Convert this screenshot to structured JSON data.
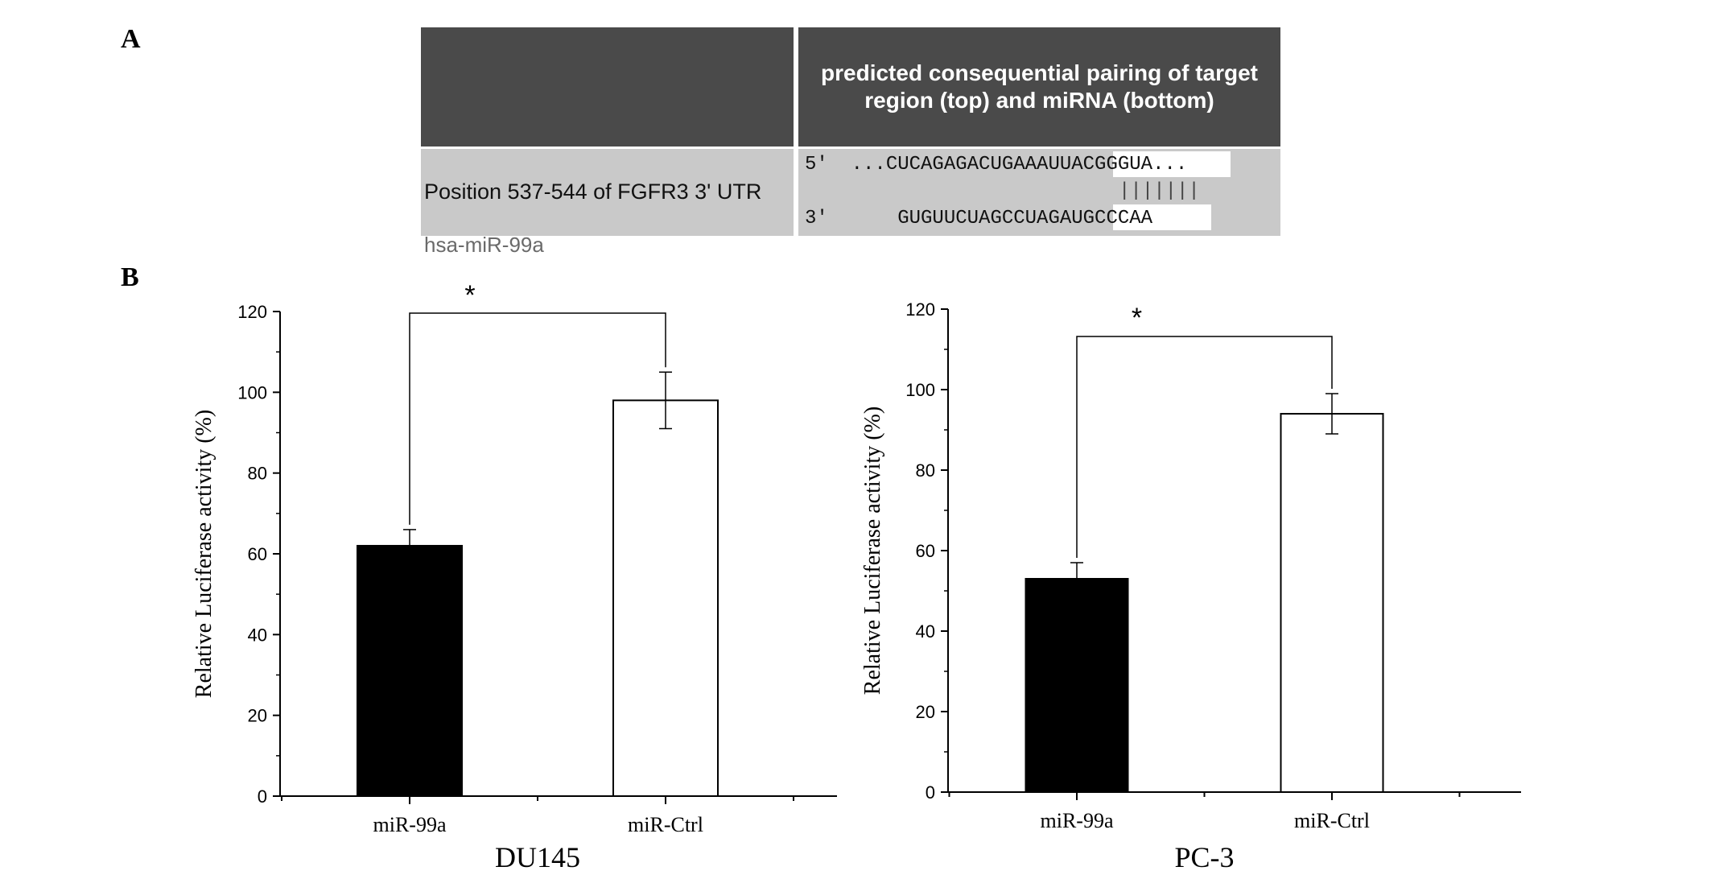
{
  "panels": {
    "a_label": "A",
    "b_label": "B"
  },
  "alignment": {
    "header": "predicted consequential pairing of target region (top) and miRNA (bottom)",
    "target_label": "Position 537-544 of FGFR3 3' UTR",
    "mirna_label": "hsa-miR-99a",
    "target_seq": "5'  ...CUCAGAGACUGAAAUUACGGGUA...",
    "pairing": "|||||||",
    "mirna_seq": "3'      GUGUUCUAGCCUAGAUGCCCAA"
  },
  "chart_data": [
    {
      "type": "bar",
      "title": "DU145",
      "xlabel": "",
      "ylabel": "Relative Luciferase activity (%)",
      "categories": [
        "miR-99a",
        "miR-Ctrl"
      ],
      "values": [
        62,
        98
      ],
      "errors": [
        4,
        7
      ],
      "bar_colors": [
        "#000000",
        "#ffffff"
      ],
      "ylim": [
        0,
        120
      ],
      "yticks": [
        0,
        20,
        40,
        60,
        80,
        100,
        120
      ],
      "significance": "*",
      "grid": false
    },
    {
      "type": "bar",
      "title": "PC-3",
      "xlabel": "",
      "ylabel": "Relative Luciferase activity (%)",
      "categories": [
        "miR-99a",
        "miR-Ctrl"
      ],
      "values": [
        53,
        94
      ],
      "errors": [
        4,
        5
      ],
      "bar_colors": [
        "#000000",
        "#ffffff"
      ],
      "ylim": [
        0,
        120
      ],
      "yticks": [
        0,
        20,
        40,
        60,
        80,
        100,
        120
      ],
      "significance": "*",
      "grid": false
    }
  ]
}
